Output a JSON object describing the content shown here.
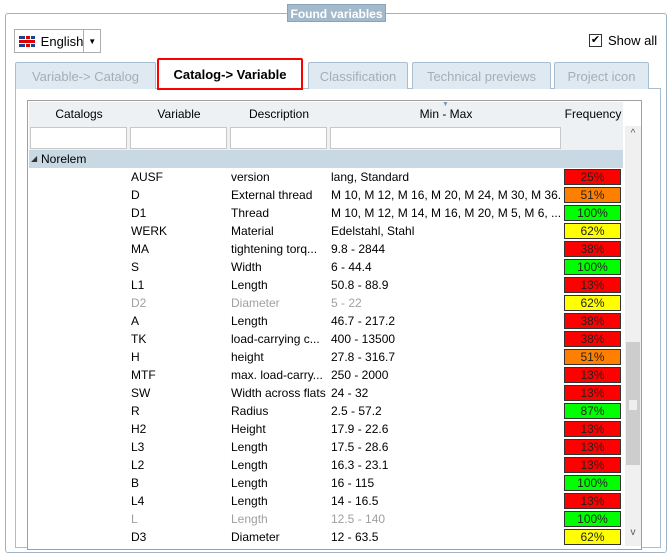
{
  "group_title": "Found variables",
  "language": {
    "value": "English",
    "icon": "uk-flag-icon"
  },
  "show_all": {
    "label": "Show all",
    "checked": true
  },
  "tabs": [
    {
      "label": "Variable-> Catalog"
    },
    {
      "label": "Catalog-> Variable",
      "active": true
    },
    {
      "label": "Classification"
    },
    {
      "label": "Technical previews"
    },
    {
      "label": "Project icon"
    }
  ],
  "columns": {
    "catalogs": "Catalogs",
    "variable": "Variable",
    "description": "Description",
    "minmax": "Min - Max",
    "frequency": "Frequency"
  },
  "filters": {
    "catalogs": "",
    "variable": "",
    "description": "",
    "minmax": ""
  },
  "group": {
    "label": "Norelem"
  },
  "freq_colors": {
    "red": "#ff0000",
    "orange": "#ff8000",
    "green": "#00ff00",
    "yellow": "#ffff00"
  },
  "rows": [
    {
      "var": "AUSF",
      "desc": "version",
      "range": "lang, Standard",
      "freq": "25%",
      "color": "red"
    },
    {
      "var": "D",
      "desc": "External thread",
      "range": "M 10, M 12, M 16, M 20, M 24, M 30, M 36...",
      "freq": "51%",
      "color": "orange"
    },
    {
      "var": "D1",
      "desc": "Thread",
      "range": "M 10, M 12, M 14, M 16, M 20, M 5, M 6, ...",
      "freq": "100%",
      "color": "green"
    },
    {
      "var": "WERK",
      "desc": "Material",
      "range": "Edelstahl, Stahl",
      "freq": "62%",
      "color": "yellow"
    },
    {
      "var": "MA",
      "desc": "tightening torq...",
      "range": "9.8 - 2844",
      "freq": "38%",
      "color": "red"
    },
    {
      "var": "S",
      "desc": "Width",
      "range": "6 - 44.4",
      "freq": "100%",
      "color": "green"
    },
    {
      "var": "L1",
      "desc": "Length",
      "range": "50.8 - 88.9",
      "freq": "13%",
      "color": "red"
    },
    {
      "var": "D2",
      "desc": "Diameter",
      "range": "5 - 22",
      "freq": "62%",
      "color": "yellow",
      "dim": true
    },
    {
      "var": "A",
      "desc": "Length",
      "range": "46.7 - 217.2",
      "freq": "38%",
      "color": "red"
    },
    {
      "var": "TK",
      "desc": "load-carrying c...",
      "range": "400 - 13500",
      "freq": "38%",
      "color": "red"
    },
    {
      "var": "H",
      "desc": "height",
      "range": "27.8 - 316.7",
      "freq": "51%",
      "color": "orange"
    },
    {
      "var": "MTF",
      "desc": "max. load-carry...",
      "range": "250 - 2000",
      "freq": "13%",
      "color": "red"
    },
    {
      "var": "SW",
      "desc": "Width across flats",
      "range": "24 - 32",
      "freq": "13%",
      "color": "red"
    },
    {
      "var": "R",
      "desc": "Radius",
      "range": "2.5 - 57.2",
      "freq": "87%",
      "color": "green"
    },
    {
      "var": "H2",
      "desc": "Height",
      "range": "17.9 - 22.6",
      "freq": "13%",
      "color": "red"
    },
    {
      "var": "L3",
      "desc": "Length",
      "range": "17.5 - 28.6",
      "freq": "13%",
      "color": "red"
    },
    {
      "var": "L2",
      "desc": "Length",
      "range": "16.3 - 23.1",
      "freq": "13%",
      "color": "red"
    },
    {
      "var": "B",
      "desc": "Length",
      "range": "16 - 115",
      "freq": "100%",
      "color": "green"
    },
    {
      "var": "L4",
      "desc": "Length",
      "range": "14 - 16.5",
      "freq": "13%",
      "color": "red"
    },
    {
      "var": "L",
      "desc": "Length",
      "range": "12.5 - 140",
      "freq": "100%",
      "color": "green",
      "dim": true
    },
    {
      "var": "D3",
      "desc": "Diameter",
      "range": "12 - 63.5",
      "freq": "62%",
      "color": "yellow"
    }
  ]
}
